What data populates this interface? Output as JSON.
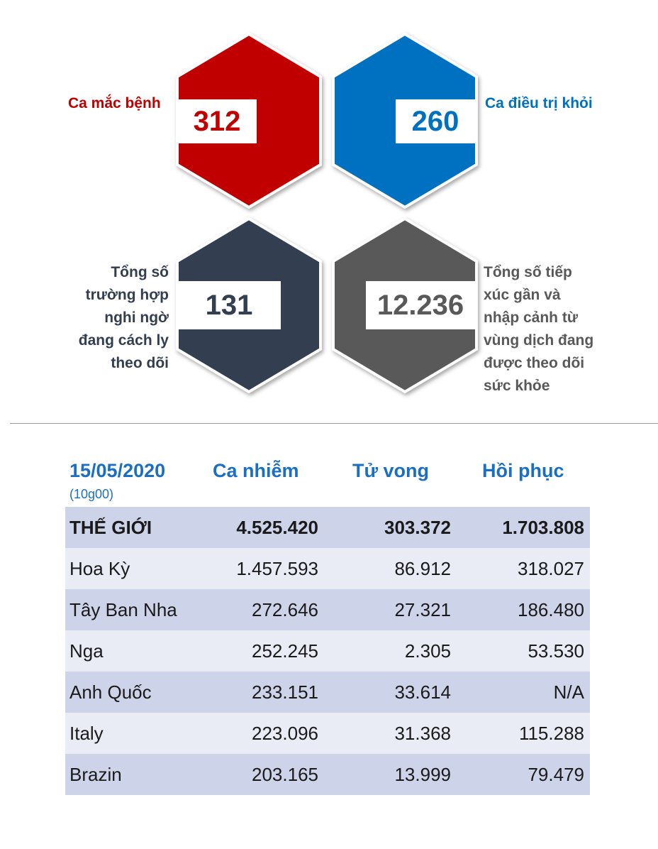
{
  "stats": {
    "cases": {
      "label": "Ca mắc bệnh",
      "value": "312",
      "color": "#c00000"
    },
    "recovered": {
      "label": "Ca điều trị khỏi",
      "value": "260",
      "color": "#0070c0"
    },
    "suspected": {
      "label": [
        "Tổng số",
        "trường hợp",
        "nghi ngờ",
        "đang cách ly",
        "theo dõi"
      ],
      "value": "131",
      "color": "#333f50"
    },
    "monitored": {
      "label": [
        "Tổng số tiếp",
        "xúc gần và",
        "nhập cảnh từ",
        "vùng dịch đang",
        "được theo dõi",
        "sức khỏe"
      ],
      "value": "12.236",
      "color": "#595959"
    }
  },
  "table": {
    "date": "15/05/2020",
    "time": "(10g00)",
    "headers": [
      "Ca nhiễm",
      "Tử vong",
      "Hồi phục"
    ],
    "rows": [
      {
        "name": "THẾ GIỚI",
        "infected": "4.525.420",
        "deaths": "303.372",
        "recovered": "1.703.808"
      },
      {
        "name": "Hoa Kỳ",
        "infected": "1.457.593",
        "deaths": "86.912",
        "recovered": "318.027"
      },
      {
        "name": "Tây Ban Nha",
        "infected": "272.646",
        "deaths": "27.321",
        "recovered": "186.480"
      },
      {
        "name": "Nga",
        "infected": "252.245",
        "deaths": "2.305",
        "recovered": "53.530"
      },
      {
        "name": "Anh Quốc",
        "infected": "233.151",
        "deaths": "33.614",
        "recovered": "N/A"
      },
      {
        "name": "Italy",
        "infected": "223.096",
        "deaths": "31.368",
        "recovered": "115.288"
      },
      {
        "name": "Brazin",
        "infected": "203.165",
        "deaths": "13.999",
        "recovered": "79.479"
      }
    ],
    "colors": {
      "header": "#1a6fc4",
      "row_dark": "#cdd3e8",
      "row_light": "#e9ecf5"
    }
  }
}
